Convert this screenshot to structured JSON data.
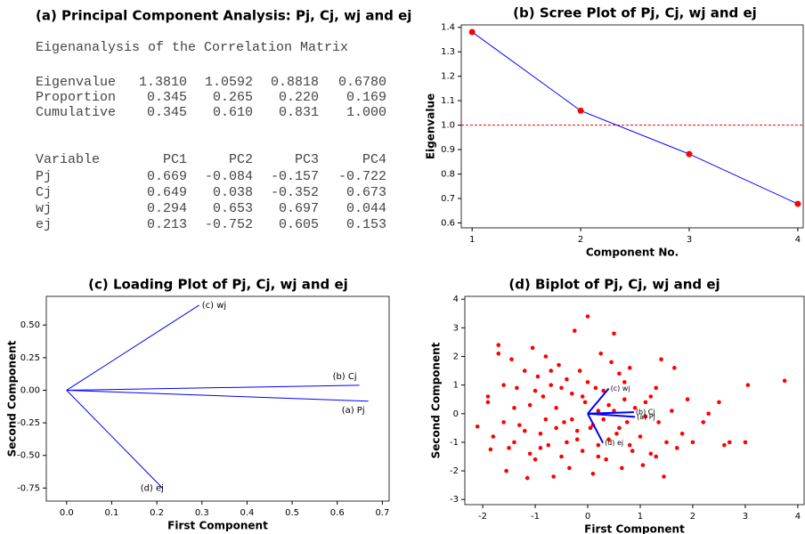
{
  "table": {
    "title": "(a) Principal Component Analysis: Pj, Cj, wj and ej",
    "heading": "Eigenanalysis of the Correlation Matrix",
    "eigen_rows": [
      [
        "Eigenvalue",
        "1.3810",
        "1.0592",
        "0.8818",
        "0.6780"
      ],
      [
        "Proportion",
        "0.345",
        "0.265",
        "0.220",
        "0.169"
      ],
      [
        "Cumulative",
        "0.345",
        "0.610",
        "0.831",
        "1.000"
      ]
    ],
    "loading_header": [
      "Variable",
      "PC1",
      "PC2",
      "PC3",
      "PC4"
    ],
    "loading_rows": [
      [
        "Pj",
        "0.669",
        "-0.084",
        "-0.157",
        "-0.722"
      ],
      [
        "Cj",
        "0.649",
        "0.038",
        "-0.352",
        "0.673"
      ],
      [
        "wj",
        "0.294",
        "0.653",
        "0.697",
        "0.044"
      ],
      [
        "ej",
        "0.213",
        "-0.752",
        "0.605",
        "0.153"
      ]
    ]
  },
  "chart_data": [
    {
      "type": "line",
      "title": "(b) Scree Plot of Pj, Cj, wj and ej",
      "x_label": "Component No.",
      "y_label": "Eigenvalue",
      "x": [
        1,
        2,
        3,
        4
      ],
      "values": [
        1.381,
        1.0592,
        0.8818,
        0.678
      ],
      "color": "#0000ff",
      "marker_color": "#ff0000",
      "reference_line": 1,
      "reference_color": "#ff0000",
      "xlim": [
        0.9,
        4.05
      ],
      "ylim": [
        0.58,
        1.41
      ],
      "xticks": [
        1,
        2,
        3,
        4
      ],
      "yticks": [
        0.6,
        0.7,
        0.8,
        0.9,
        {
          "value": 1,
          "label": "1.0"
        },
        1.1,
        1.2,
        1.3,
        1.4
      ]
    },
    {
      "type": "loading",
      "title": "(c) Loading Plot of Pj, Cj, wj and ej",
      "x_label": "First Component",
      "y_label": "Second Component",
      "labels": [
        "(a) Pj",
        "(b) Cj",
        "(c) wj",
        "(d) ej"
      ],
      "x": [
        0.669,
        0.649,
        0.294,
        0.213
      ],
      "values": [
        -0.084,
        0.038,
        0.653,
        -0.752
      ],
      "color": "#0000ff",
      "xlim": [
        -0.045,
        0.715
      ],
      "ylim": [
        -0.85,
        0.72
      ],
      "xticks": [
        {
          "value": 0,
          "label": "0.0"
        },
        0.1,
        0.2,
        0.3,
        0.4,
        0.5,
        0.6,
        0.7
      ],
      "yticks": [
        -0.75,
        {
          "value": -0.5,
          "label": "-0.50"
        },
        -0.25,
        {
          "value": 0,
          "label": "0.00"
        },
        0.25,
        {
          "value": 0.5,
          "label": "0.50"
        }
      ]
    },
    {
      "type": "biplot",
      "title": "(d) Biplot of Pj, Cj, wj and ej",
      "x_label": "First Component",
      "y_label": "Second Component",
      "x": [
        -2.1,
        -1.9,
        -1.9,
        -1.85,
        -1.7,
        -1.7,
        -1.6,
        -1.55,
        -1.5,
        -1.45,
        -1.4,
        -1.35,
        -1.3,
        -1.2,
        -1.15,
        -1.1,
        -1.05,
        -1.0,
        -0.95,
        -0.9,
        -0.85,
        -0.8,
        -0.75,
        -0.7,
        -0.65,
        -0.6,
        -0.55,
        -0.5,
        -0.45,
        -0.4,
        -0.35,
        -0.3,
        -0.25,
        -0.2,
        -0.15,
        -0.1,
        -0.05,
        0.0,
        0.05,
        0.1,
        0.15,
        0.2,
        0.25,
        0.3,
        0.35,
        0.4,
        0.45,
        0.5,
        0.55,
        0.6,
        0.65,
        0.7,
        0.75,
        0.8,
        0.85,
        0.9,
        1.0,
        1.05,
        1.1,
        1.2,
        1.3,
        1.35,
        1.4,
        1.45,
        1.5,
        1.6,
        1.65,
        1.8,
        1.9,
        2.0,
        2.2,
        2.5,
        2.6,
        2.7,
        3.0,
        3.05,
        3.75,
        -0.3,
        0.2,
        -0.1,
        0.3,
        0.1,
        -0.6,
        0.5,
        -0.2,
        0.4,
        -0.8,
        0.6,
        -0.5,
        0.0,
        -1.2,
        1.1,
        -1.4,
        -0.9,
        0.8,
        -1.6,
        -1.8,
        1.3,
        -0.4,
        0.2,
        -0.7,
        0.7,
        -1.0,
        1.7,
        2.3,
        1.2,
        -1.1
      ],
      "values": [
        -0.45,
        0.6,
        0.4,
        -1.25,
        2.4,
        2.1,
        -0.3,
        -2.0,
        -1.2,
        1.9,
        -1.0,
        0.9,
        -0.4,
        1.5,
        -2.25,
        0.3,
        2.3,
        -1.6,
        1.3,
        -0.7,
        0.6,
        2.0,
        -1.1,
        1.0,
        -2.2,
        0.2,
        1.7,
        -1.5,
        -0.3,
        1.2,
        -1.9,
        0.7,
        2.9,
        -0.9,
        1.5,
        -1.3,
        0.4,
        3.4,
        -0.5,
        -2.1,
        0.9,
        -1.1,
        2.1,
        -0.2,
        -1.6,
        0.3,
        1.8,
        2.8,
        -0.7,
        1.4,
        -1.9,
        0.5,
        -0.3,
        1.6,
        -1.3,
        0.2,
        -0.8,
        -1.8,
        0.4,
        -1.4,
        0.9,
        -0.3,
        1.9,
        -2.2,
        -1.0,
        0.1,
        1.6,
        -0.7,
        0.5,
        -1.0,
        -0.3,
        0.4,
        -1.1,
        -1.0,
        -1.0,
        1.0,
        1.15,
        -0.2,
        0.1,
        0.6,
        0.8,
        -0.4,
        -0.5,
        0.1,
        -0.6,
        -0.9,
        -0.2,
        -0.5,
        0.9,
        1.1,
        -0.6,
        -0.1,
        0.2,
        -1.2,
        -1.1,
        1.0,
        -0.8,
        -1.5,
        -1.0,
        -1.5,
        1.5,
        1.1,
        0.8,
        -1.2,
        0.0,
        0.6,
        -1.4
      ],
      "color": "#ff0000",
      "vectors": {
        "labels": [
          "(a) Pj",
          "(b) Cj",
          "(c) wj",
          "(d) ej"
        ],
        "x": [
          0.9,
          0.88,
          0.4,
          0.29
        ],
        "values": [
          -0.11,
          0.05,
          0.88,
          -1.02
        ],
        "color": "#0000ff"
      },
      "xlim": [
        -2.34,
        4.12
      ],
      "ylim": [
        -3.18,
        4.1
      ],
      "xticks": [
        -2,
        -1,
        0,
        1,
        2,
        3,
        4
      ],
      "yticks": [
        -3,
        -2,
        -1,
        0,
        1,
        2,
        3,
        4
      ]
    }
  ]
}
